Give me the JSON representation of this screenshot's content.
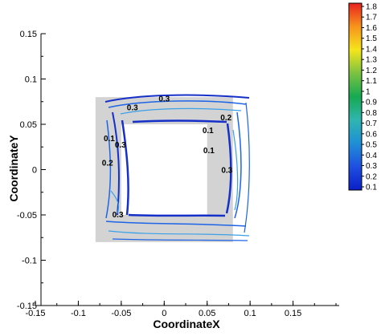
{
  "chart_data": {
    "type": "contour",
    "xlabel": "CoordinateX",
    "ylabel": "CoordinateY",
    "xlim": [
      -0.15,
      0.2
    ],
    "ylim": [
      -0.15,
      0.15
    ],
    "x_ticks": [
      "-0.15",
      "-0.1",
      "-0.05",
      "0",
      "0.05",
      "0.1",
      "0.15"
    ],
    "x_tick_values": [
      -0.15,
      -0.1,
      -0.05,
      0,
      0.05,
      0.1,
      0.15
    ],
    "y_ticks": [
      "0.15",
      "0.1",
      "0.05",
      "0",
      "-0.05",
      "-0.1",
      "-0.15"
    ],
    "y_tick_values": [
      0.15,
      0.1,
      0.05,
      0,
      -0.05,
      -0.1,
      -0.15
    ],
    "domain": {
      "outer": {
        "xmin": -0.08,
        "xmax": 0.08,
        "ymin": -0.08,
        "ymax": 0.08
      },
      "inner_hole": {
        "xmin": -0.05,
        "xmax": 0.05,
        "ymin": -0.05,
        "ymax": 0.05
      },
      "fill_color": "#d3d3d3"
    },
    "contour_labels": [
      {
        "text": "0.3",
        "x": -0.037,
        "y": 0.068
      },
      {
        "text": "0.3",
        "x": 0.0,
        "y": 0.078
      },
      {
        "text": "0.2",
        "x": 0.072,
        "y": 0.057
      },
      {
        "text": "0.1",
        "x": 0.051,
        "y": 0.043
      },
      {
        "text": "0.1",
        "x": -0.064,
        "y": 0.034
      },
      {
        "text": "0.3",
        "x": -0.051,
        "y": 0.027
      },
      {
        "text": "0.2",
        "x": -0.066,
        "y": 0.007
      },
      {
        "text": "0.1",
        "x": 0.052,
        "y": 0.021
      },
      {
        "text": "0.3",
        "x": 0.073,
        "y": -0.001
      },
      {
        "text": "0.3",
        "x": -0.054,
        "y": -0.05
      }
    ],
    "colorbar": {
      "labels": [
        "1.8",
        "1.7",
        "1.6",
        "1.5",
        "1.4",
        "1.3",
        "1.2",
        "1.1",
        "1",
        "0.9",
        "0.8",
        "0.7",
        "0.6",
        "0.5",
        "0.4",
        "0.3",
        "0.2",
        "0.1"
      ],
      "values": [
        1.8,
        1.7,
        1.6,
        1.5,
        1.4,
        1.3,
        1.2,
        1.1,
        1.0,
        0.9,
        0.8,
        0.7,
        0.6,
        0.5,
        0.4,
        0.3,
        0.2,
        0.1
      ],
      "colormap": [
        "#e8231f",
        "#f7941d",
        "#f5e51b",
        "#7cc242",
        "#16a951",
        "#2fb5b0",
        "#1f8fd6",
        "#1f4fe0",
        "#0a1fc8"
      ]
    }
  }
}
